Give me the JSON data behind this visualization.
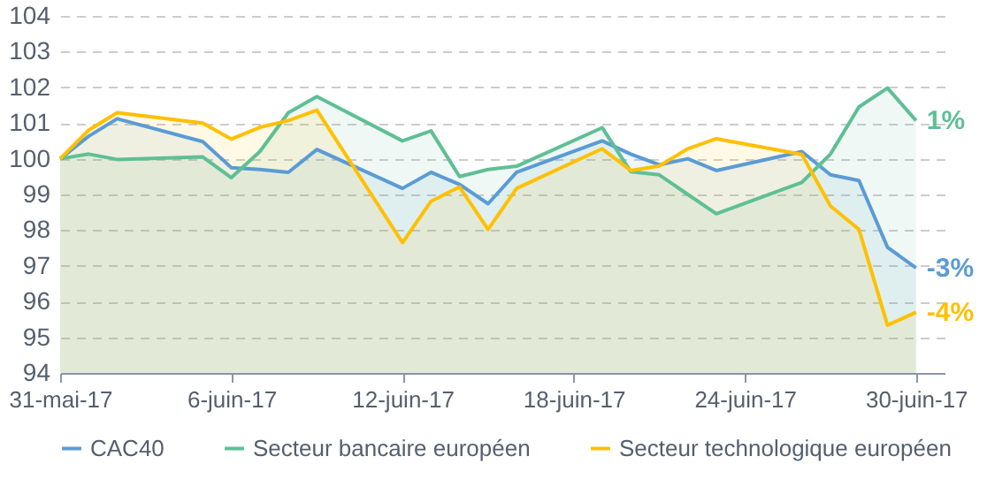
{
  "chart_data": {
    "type": "area",
    "x": [
      "--05-31",
      "--06-01",
      "--06-02",
      "--06-05",
      "--06-06",
      "--06-07",
      "--06-08",
      "--06-09",
      "--06-12",
      "--06-13",
      "--06-14",
      "--06-15",
      "--06-16",
      "--06-19",
      "--06-20",
      "--06-21",
      "--06-22",
      "--06-23",
      "--06-26",
      "--06-27",
      "--06-28",
      "--06-29",
      "--06-30"
    ],
    "series": [
      {
        "name": "CAC40",
        "color": "#5b9bd5",
        "values": [
          100,
          100.63,
          101.12,
          100.48,
          99.75,
          99.7,
          99.62,
          100.26,
          99.17,
          99.62,
          99.28,
          98.74,
          99.62,
          100.5,
          100.13,
          99.83,
          100.0,
          99.67,
          100.2,
          99.55,
          99.39,
          97.52,
          96.94
        ]
      },
      {
        "name": "Secteur bancaire européen",
        "color": "#5fbf95",
        "values": [
          100,
          100.13,
          99.98,
          100.05,
          99.47,
          100.2,
          101.29,
          101.74,
          100.5,
          100.78,
          99.5,
          99.7,
          99.79,
          100.87,
          99.64,
          99.55,
          99.0,
          98.46,
          99.34,
          100.13,
          101.45,
          101.98,
          101.07
        ]
      },
      {
        "name": "Secteur technologique européen",
        "color": "#ffc000",
        "values": [
          100,
          100.8,
          101.29,
          101.0,
          100.55,
          100.88,
          101.07,
          101.36,
          97.65,
          98.81,
          99.21,
          98.02,
          99.17,
          100.28,
          99.67,
          99.8,
          100.28,
          100.56,
          100.12,
          98.68,
          98.02,
          95.34,
          95.7
        ]
      }
    ],
    "xlim": [
      "--05-31",
      "--07-01"
    ],
    "xticks": [
      {
        "value": "--05-31",
        "label": "31-mai-17"
      },
      {
        "value": "--06-06",
        "label": "6-juin-17"
      },
      {
        "value": "--06-12",
        "label": "12-juin-17"
      },
      {
        "value": "--06-18",
        "label": "18-juin-17"
      },
      {
        "value": "--06-24",
        "label": "24-juin-17"
      },
      {
        "value": "--06-30",
        "label": "30-juin-17"
      }
    ],
    "ylim": [
      94,
      104
    ],
    "yticks": [
      94,
      95,
      96,
      97,
      98,
      99,
      100,
      101,
      102,
      103,
      104
    ],
    "grid": "y",
    "legend": "bottom",
    "annotations": [
      {
        "text": "1%",
        "x": "--06-30",
        "y": 101.07
      },
      {
        "text": "-3%",
        "x": "--06-30",
        "y": 96.94
      },
      {
        "text": "-4%",
        "x": "--06-30",
        "y": 95.7
      }
    ]
  }
}
